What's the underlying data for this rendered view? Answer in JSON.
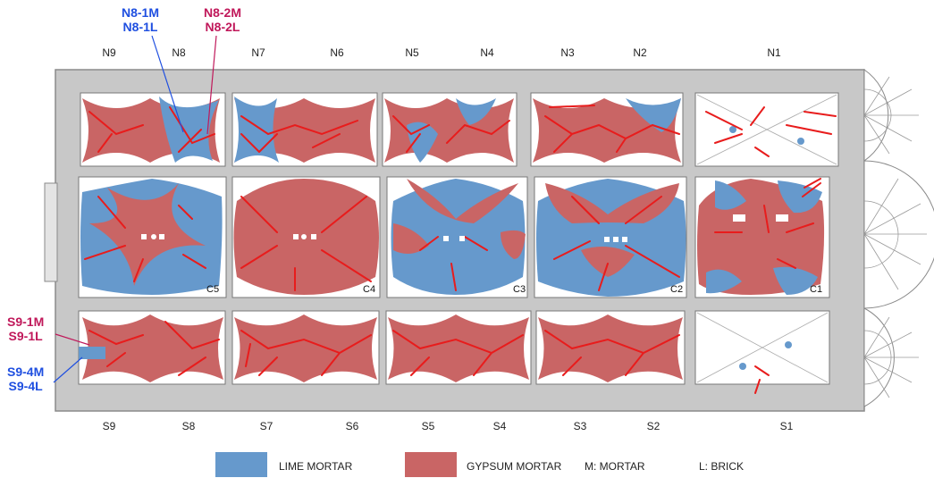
{
  "colors": {
    "lime": "#6699cc",
    "gypsum": "#c96565",
    "crack": "#e81c1c",
    "wall": "#c8c8c8",
    "wall_edge": "#8a8a8a",
    "callout_blue": "#1f4fe0",
    "callout_red": "#c0185a"
  },
  "north_bays": [
    "N9",
    "N8",
    "N7",
    "N6",
    "N5",
    "N4",
    "N3",
    "N2",
    "N1"
  ],
  "south_bays": [
    "S9",
    "S8",
    "S7",
    "S6",
    "S5",
    "S4",
    "S3",
    "S2",
    "S1"
  ],
  "central_bays": [
    "C5",
    "C4",
    "C3",
    "C2",
    "C1"
  ],
  "callouts": {
    "n8_lime": [
      "N8-1M",
      "N8-1L"
    ],
    "n8_gypsum": [
      "N8-2M",
      "N8-2L"
    ],
    "s9_gypsum": [
      "S9-1M",
      "S9-1L"
    ],
    "s9_lime": [
      "S9-4M",
      "S9-4L"
    ]
  },
  "legend": {
    "lime_label": "LIME MORTAR",
    "gypsum_label": "GYPSUM MORTAR",
    "mortar_abbrev": "M: MORTAR",
    "brick_abbrev": "L: BRICK"
  }
}
